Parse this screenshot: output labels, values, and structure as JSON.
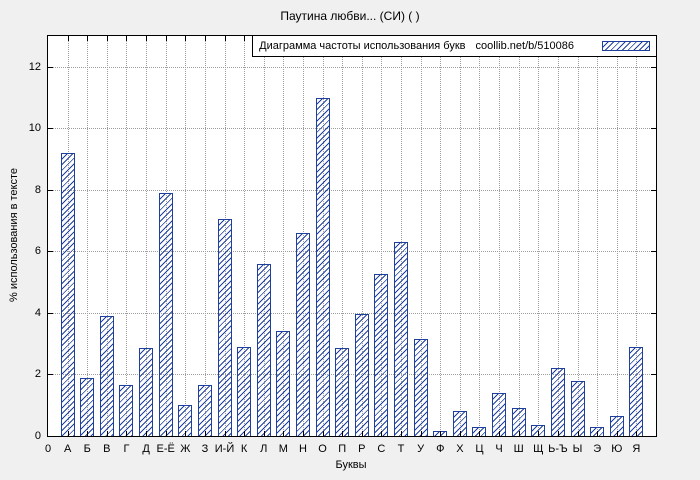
{
  "chart_data": {
    "type": "bar",
    "title": "Паутина любви... (СИ) ( )",
    "xlabel": "Буквы",
    "ylabel": "% использования в тексте",
    "legend_label": "Диаграмма частоты использования букв",
    "legend_source": "coollib.net/b/510086",
    "x_origin_label": "0",
    "categories": [
      "А",
      "Б",
      "В",
      "Г",
      "Д",
      "Е-Ё",
      "Ж",
      "З",
      "И-Й",
      "К",
      "Л",
      "М",
      "Н",
      "О",
      "П",
      "Р",
      "С",
      "Т",
      "У",
      "Ф",
      "Х",
      "Ц",
      "Ч",
      "Ш",
      "Щ",
      "Ь-Ъ",
      "Ы",
      "Э",
      "Ю",
      "Я"
    ],
    "values": [
      9.2,
      1.9,
      3.9,
      1.65,
      2.85,
      7.9,
      1.0,
      1.65,
      7.05,
      2.9,
      5.6,
      3.4,
      6.6,
      11.0,
      2.85,
      3.95,
      5.25,
      6.3,
      3.15,
      0.15,
      0.8,
      0.3,
      1.4,
      0.9,
      0.35,
      2.2,
      1.8,
      0.3,
      0.65,
      2.9
    ],
    "yticks": [
      0,
      2,
      4,
      6,
      8,
      10,
      12
    ],
    "ylim": [
      0,
      13
    ],
    "grid": true,
    "legend_position": "top-right",
    "bar_color": "#1e3f9c",
    "plot_background": "#ffffff",
    "figure_background": "#f0f0f0"
  }
}
